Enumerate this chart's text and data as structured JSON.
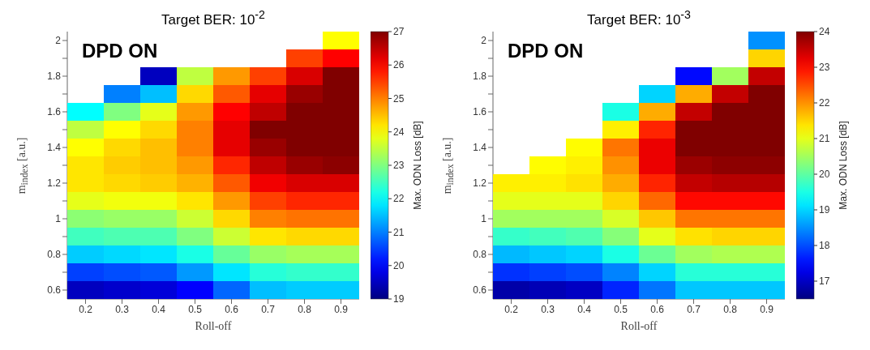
{
  "chart_data": [
    {
      "type": "heatmap",
      "title": "Target BER: 10$^{-2}$",
      "xlabel": "Roll-off",
      "ylabel": "m$_{index}$ [a.u.]",
      "clabel": "Max. ODN Loss [dB]",
      "annotations": [
        "DPD ON"
      ],
      "categories": [
        "0.2",
        "0.3",
        "0.4",
        "0.5",
        "0.6",
        "0.7",
        "0.8",
        "0.9"
      ],
      "y_categories": [
        "2",
        null,
        "1.8",
        null,
        "1.6",
        null,
        "1.4",
        null,
        "1.2",
        null,
        "1",
        null,
        "0.8",
        null,
        "0.6"
      ],
      "cells": [
        [
          null,
          null,
          null,
          null,
          null,
          null,
          null,
          24
        ],
        [
          null,
          null,
          null,
          null,
          null,
          null,
          25.5,
          26
        ],
        [
          null,
          null,
          19.5,
          23.5,
          24.8,
          25.5,
          26.3,
          27
        ],
        [
          null,
          21,
          21.5,
          24.3,
          25.3,
          26.2,
          26.8,
          27
        ],
        [
          22,
          23,
          23.8,
          24.8,
          26,
          26.5,
          27,
          27
        ],
        [
          23.5,
          24,
          24.3,
          25,
          26.2,
          27,
          27,
          27
        ],
        [
          24,
          24.3,
          24.5,
          25,
          26.2,
          26.8,
          27,
          27
        ],
        [
          24.2,
          24.4,
          24.5,
          24.8,
          25.7,
          26.5,
          26.8,
          26.9
        ],
        [
          24.2,
          24.3,
          24.4,
          24.6,
          25.3,
          26.1,
          26.3,
          26.3
        ],
        [
          23.8,
          23.9,
          23.9,
          24.2,
          24.8,
          25.5,
          25.7,
          25.7
        ],
        [
          23.1,
          23.2,
          23.2,
          23.6,
          24.3,
          25,
          25.1,
          25.1
        ],
        [
          22.5,
          22.6,
          22.6,
          23,
          23.6,
          24.2,
          24.3,
          24.3
        ],
        [
          21.6,
          21.7,
          21.8,
          22.2,
          22.8,
          23.2,
          23.3,
          23.3
        ],
        [
          20.5,
          20.6,
          20.7,
          21.2,
          21.8,
          22.3,
          22.4,
          22.4
        ],
        [
          19.5,
          19.6,
          19.7,
          20,
          20.8,
          21.5,
          21.6,
          21.6
        ]
      ],
      "clim": [
        19,
        27
      ],
      "cticks": [
        19,
        20,
        21,
        22,
        23,
        24,
        25,
        26,
        27
      ]
    },
    {
      "type": "heatmap",
      "title": "Target BER: 10$^{-3}$",
      "xlabel": "Roll-off",
      "ylabel": "m$_{index}$ [a.u.]",
      "clabel": "Max. ODN Loss [dB]",
      "annotations": [
        "DPD ON"
      ],
      "categories": [
        "0.2",
        "0.3",
        "0.4",
        "0.5",
        "0.6",
        "0.7",
        "0.8",
        "0.9"
      ],
      "y_categories": [
        "2",
        null,
        "1.8",
        null,
        "1.6",
        null,
        "1.4",
        null,
        "1.2",
        null,
        "1",
        null,
        "0.8",
        null,
        "0.6"
      ],
      "cells": [
        [
          null,
          null,
          null,
          null,
          null,
          null,
          null,
          18.5
        ],
        [
          null,
          null,
          null,
          null,
          null,
          null,
          null,
          21.5
        ],
        [
          null,
          null,
          null,
          null,
          null,
          17.5,
          20.5,
          23.5
        ],
        [
          null,
          null,
          null,
          null,
          19,
          21.8,
          23.5,
          24
        ],
        [
          null,
          null,
          null,
          19.5,
          21.8,
          23.5,
          24,
          24
        ],
        [
          null,
          null,
          null,
          21.3,
          22.8,
          24,
          24,
          24
        ],
        [
          null,
          null,
          21.2,
          22.2,
          23.2,
          24,
          24,
          24
        ],
        [
          null,
          21.2,
          21.3,
          22,
          23.2,
          23.8,
          23.9,
          23.9
        ],
        [
          21.3,
          21.3,
          21.4,
          21.8,
          22.8,
          23.5,
          23.6,
          23.6
        ],
        [
          21,
          21,
          21,
          21.5,
          22.3,
          23,
          23,
          23
        ],
        [
          20.5,
          20.5,
          20.5,
          20.9,
          21.6,
          22.2,
          22.2,
          22.2
        ],
        [
          19.7,
          19.8,
          19.9,
          20.3,
          21,
          21.4,
          21.5,
          21.5
        ],
        [
          18.8,
          18.9,
          19,
          19.5,
          20.1,
          20.5,
          20.6,
          20.6
        ],
        [
          17.8,
          17.9,
          18,
          18.4,
          19,
          19.6,
          19.6,
          19.6
        ],
        [
          16.8,
          16.9,
          17,
          17.7,
          18.3,
          18.9,
          18.9,
          18.9
        ]
      ],
      "clim": [
        16.5,
        24
      ],
      "cticks": [
        17,
        18,
        19,
        20,
        21,
        22,
        23,
        24
      ]
    }
  ]
}
